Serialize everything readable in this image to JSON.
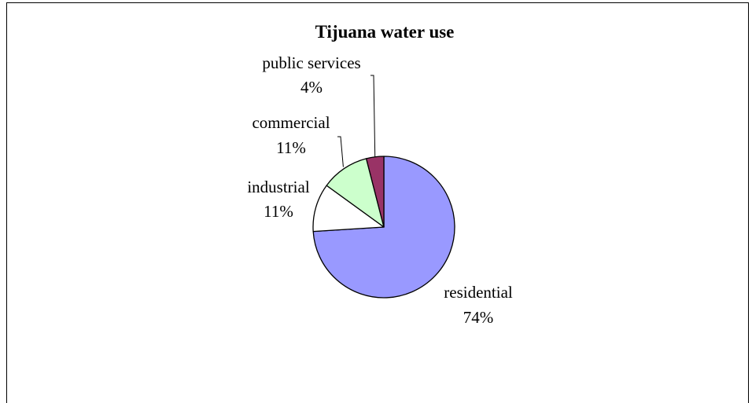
{
  "chart_data": {
    "type": "pie",
    "title": "Tijuana water use",
    "slices": [
      {
        "name": "residential",
        "value": 74,
        "label": "74%",
        "color": "#9999ff"
      },
      {
        "name": "industrial",
        "value": 11,
        "label": "11%",
        "color": "#ffffff"
      },
      {
        "name": "commercial",
        "value": 11,
        "label": "11%",
        "color": "#ccffcc"
      },
      {
        "name": "public services",
        "value": 4,
        "label": "4%",
        "color": "#993366"
      }
    ],
    "legend": "none",
    "data_labels": "category name and percentage"
  }
}
